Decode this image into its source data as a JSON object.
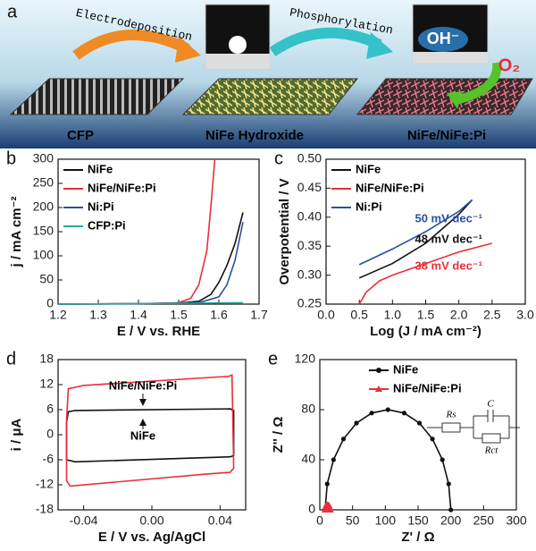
{
  "schematic": {
    "panel_label": "a",
    "steps": [
      "Electrodeposition",
      "Phosphorylation"
    ],
    "materials": [
      "CFP",
      "NiFe Hydroxide",
      "NiFe/NiFe:Pi"
    ],
    "ion": "OH⁻",
    "product": "O₂"
  },
  "chart_data": [
    {
      "type": "line",
      "panel_label": "b",
      "x_label": "E / V vs. RHE",
      "y_label": "j / mA cm⁻²",
      "xlim": [
        1.2,
        1.7
      ],
      "xticks": [
        1.2,
        1.3,
        1.4,
        1.5,
        1.6,
        1.7
      ],
      "ylim": [
        0,
        300
      ],
      "yticks": [
        0,
        50,
        100,
        150,
        200,
        250,
        300
      ],
      "legend": "upper left",
      "series": [
        {
          "name": "NiFe",
          "color": "#111111",
          "x": [
            1.2,
            1.4,
            1.5,
            1.55,
            1.58,
            1.6,
            1.62,
            1.64,
            1.66
          ],
          "values": [
            0,
            1,
            2,
            6,
            20,
            45,
            80,
            125,
            190
          ]
        },
        {
          "name": "NiFe/NiFe:Pi",
          "color": "#e8303a",
          "x": [
            1.2,
            1.4,
            1.5,
            1.53,
            1.55,
            1.57,
            1.58,
            1.59
          ],
          "values": [
            0,
            1,
            3,
            12,
            40,
            110,
            200,
            300
          ]
        },
        {
          "name": "Ni:Pi",
          "color": "#2c4fa0",
          "x": [
            1.2,
            1.4,
            1.55,
            1.6,
            1.62,
            1.64,
            1.66
          ],
          "values": [
            0,
            1,
            3,
            15,
            40,
            90,
            170
          ]
        },
        {
          "name": "CFP:Pi",
          "color": "#2aa8a0",
          "x": [
            1.2,
            1.4,
            1.66
          ],
          "values": [
            0,
            1,
            3
          ]
        }
      ]
    },
    {
      "type": "line",
      "panel_label": "c",
      "x_label": "Log (J / mA cm⁻²)",
      "y_label": "Overpotential / V",
      "xlim": [
        0,
        3
      ],
      "xticks": [
        {
          "value": 0,
          "label": "0.0"
        },
        0.5,
        {
          "value": 1,
          "label": "1.0"
        },
        1.5,
        {
          "value": 2,
          "label": "2.0"
        },
        2.5,
        {
          "value": 3,
          "label": "3.0"
        }
      ],
      "ylim": [
        0.25,
        0.5
      ],
      "yticks": [
        0.25,
        {
          "value": 0.3,
          "label": "0.30"
        },
        0.35,
        {
          "value": 0.4,
          "label": "0.40"
        },
        0.45,
        {
          "value": 0.5,
          "label": "0.50"
        }
      ],
      "legend": "upper left",
      "series": [
        {
          "name": "NiFe",
          "color": "#111111",
          "x": [
            0.5,
            1.0,
            1.5,
            2.0,
            2.2
          ],
          "values": [
            0.295,
            0.32,
            0.355,
            0.405,
            0.43
          ]
        },
        {
          "name": "NiFe/NiFe:Pi",
          "color": "#e8303a",
          "x": [
            0.5,
            0.6,
            0.8,
            1.0,
            1.5,
            2.0,
            2.5
          ],
          "values": [
            0.25,
            0.27,
            0.29,
            0.3,
            0.32,
            0.34,
            0.355
          ]
        },
        {
          "name": "Ni:Pi",
          "color": "#2c4fa0",
          "x": [
            0.5,
            1.0,
            1.5,
            2.0,
            2.2
          ],
          "values": [
            0.318,
            0.345,
            0.375,
            0.41,
            0.43
          ]
        }
      ],
      "annotations": [
        {
          "text": "50 mV dec⁻¹",
          "color": "#2c4fa0"
        },
        {
          "text": "48 mV dec⁻¹",
          "color": "#111111"
        },
        {
          "text": "38 mV dec⁻¹",
          "color": "#e8303a"
        }
      ]
    },
    {
      "type": "line",
      "panel_label": "d",
      "x_label": "E / V vs. Ag/AgCl",
      "y_label": "i / μA",
      "xlim": [
        -0.055,
        0.055
      ],
      "xticks": [
        -0.04,
        {
          "value": 0,
          "label": "0.00"
        },
        0.04
      ],
      "ylim": [
        -18,
        18
      ],
      "yticks": [
        -18,
        -12,
        -6,
        0,
        6,
        12,
        18
      ],
      "legend": "inline",
      "series": [
        {
          "name": "NiFe",
          "color": "#111111",
          "x": [
            -0.05,
            -0.049,
            -0.045,
            0.046,
            0.048,
            0.048,
            0.046,
            -0.045,
            -0.05,
            -0.05
          ],
          "values": [
            3,
            5.5,
            5.8,
            6.2,
            5.8,
            -5,
            -5.3,
            -6.5,
            -6,
            3
          ]
        },
        {
          "name": "NiFe/NiFe:Pi",
          "color": "#e8303a",
          "x": [
            -0.05,
            -0.049,
            -0.04,
            0.045,
            0.047,
            0.048,
            0.046,
            0.03,
            -0.048,
            -0.05,
            -0.05
          ],
          "values": [
            3.5,
            11,
            11.8,
            14,
            14.3,
            -8,
            -9,
            -9.5,
            -12.3,
            -11,
            3.5
          ]
        }
      ]
    },
    {
      "type": "line",
      "panel_label": "e",
      "x_label": "Z' / Ω",
      "y_label": "Z'' / Ω",
      "xlim": [
        0,
        300
      ],
      "xticks": [
        0,
        50,
        100,
        150,
        200,
        250,
        300
      ],
      "ylim": [
        0,
        120
      ],
      "yticks": [
        0,
        40,
        80,
        120
      ],
      "legend": "upper center",
      "series": [
        {
          "name": "NiFe",
          "color": "#111111",
          "marker": "circle",
          "x": [
            8,
            11.3,
            20.9,
            36.1,
            56,
            79.2,
            104,
            128.8,
            152,
            171.9,
            187.1,
            196.7,
            200
          ],
          "values": [
            0,
            20.7,
            40,
            56.6,
            69.3,
            77.3,
            80,
            77.3,
            69.3,
            56.6,
            40,
            20.7,
            0
          ]
        },
        {
          "name": "NiFe/NiFe:Pi",
          "color": "#e8303a",
          "marker": "triangle",
          "x": [
            8,
            9,
            10,
            12,
            14,
            15,
            16
          ],
          "values": [
            0,
            2.5,
            3.8,
            4.2,
            3.6,
            2,
            0
          ]
        }
      ],
      "inset_labels": [
        "Rs",
        "C",
        "Rct"
      ]
    }
  ]
}
